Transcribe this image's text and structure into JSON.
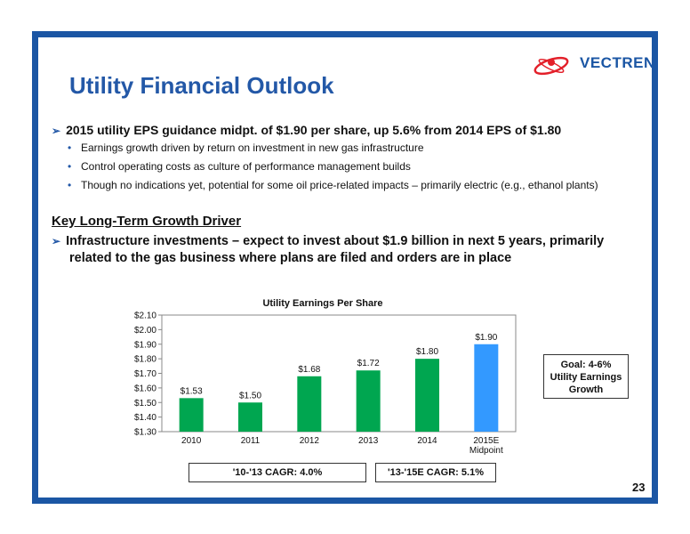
{
  "brand": {
    "name": "VECTREN",
    "color": "#1b56a4",
    "accent": "#e3202a"
  },
  "title": "Utility Financial Outlook",
  "bullet_main": "2015 utility EPS guidance midpt. of $1.90 per share, up 5.6% from 2014 EPS of $1.80",
  "sub_bullets": [
    "Earnings growth driven by return on investment in new gas infrastructure",
    "Control operating costs as culture of performance management builds",
    "Though no indications yet, potential for some oil price-related impacts – primarily electric (e.g., ethanol plants)"
  ],
  "section_heading": "Key Long-Term Growth Driver",
  "bullet_driver": "Infrastructure investments – expect to invest about $1.9 billion in next 5 years, primarily related to the gas business where plans are filed and orders are in place",
  "goal_box": {
    "line1": "Goal: 4-6%",
    "line2": "Utility Earnings",
    "line3": "Growth"
  },
  "cagr": {
    "first": "'10-'13 CAGR: 4.0%",
    "second": "'13-'15E CAGR: 5.1%"
  },
  "page_number": "23",
  "chart_data": {
    "type": "bar",
    "title": "Utility Earnings Per Share",
    "categories": [
      "2010",
      "2011",
      "2012",
      "2013",
      "2014",
      "2015E"
    ],
    "category_sublabels": [
      "",
      "",
      "",
      "",
      "",
      "Midpoint"
    ],
    "values": [
      1.53,
      1.5,
      1.68,
      1.72,
      1.8,
      1.9
    ],
    "data_labels": [
      "$1.53",
      "$1.50",
      "$1.68",
      "$1.72",
      "$1.80",
      "$1.90"
    ],
    "bar_colors": [
      "#00a650",
      "#00a650",
      "#00a650",
      "#00a650",
      "#00a650",
      "#3399ff"
    ],
    "ylim": [
      1.3,
      2.1
    ],
    "yticks": [
      "$1.30",
      "$1.40",
      "$1.50",
      "$1.60",
      "$1.70",
      "$1.80",
      "$1.90",
      "$2.00",
      "$2.10"
    ],
    "grid": false
  }
}
